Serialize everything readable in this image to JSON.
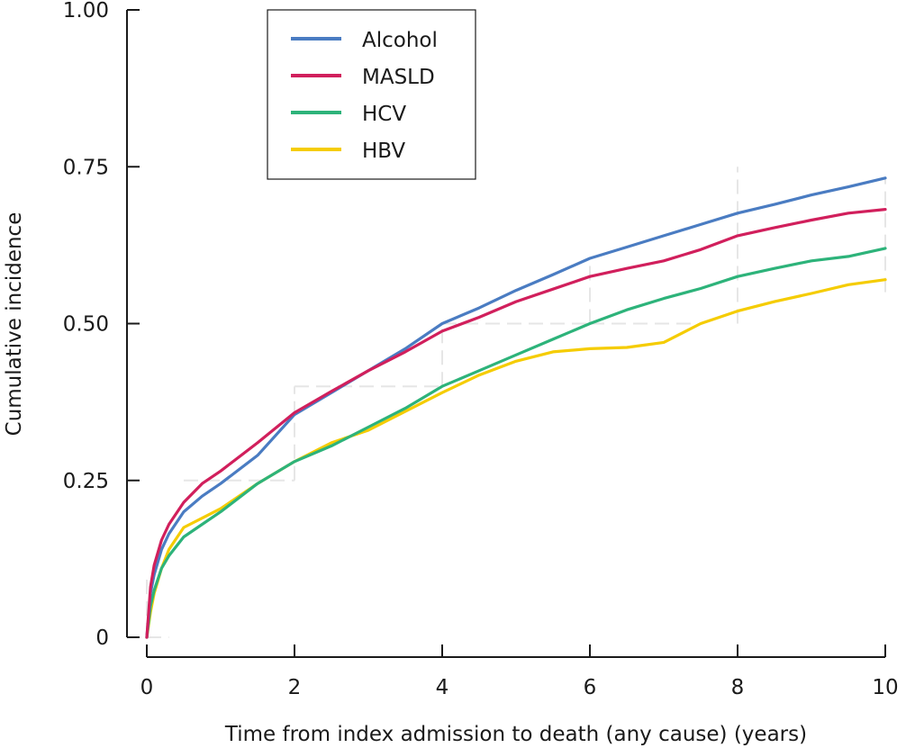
{
  "chart_data": {
    "type": "line",
    "title": "",
    "xlabel": "Time from index admission to death (any cause) (years)",
    "ylabel": "Cumulative incidence",
    "xlim": [
      0,
      10
    ],
    "ylim": [
      0,
      1
    ],
    "xticks": [
      0,
      2,
      4,
      6,
      8,
      10
    ],
    "xtick_labels": [
      "0",
      "2",
      "4",
      "6",
      "8",
      "10"
    ],
    "yticks": [
      0,
      0.25,
      0.5,
      0.75,
      1.0
    ],
    "ytick_labels": [
      "0",
      "0.25",
      "0.50",
      "0.75",
      "1.00"
    ],
    "grid": false,
    "legend": {
      "placement": "top-left",
      "boxed": true
    },
    "series": [
      {
        "name": "Alcohol",
        "color": "#4a7cc2",
        "x": [
          0,
          0.05,
          0.1,
          0.2,
          0.3,
          0.5,
          0.75,
          1,
          1.5,
          2,
          2.5,
          3,
          3.5,
          4,
          4.5,
          5,
          5.5,
          6,
          6.5,
          7,
          7.5,
          8,
          8.5,
          9,
          9.5,
          10
        ],
        "y": [
          0,
          0.07,
          0.1,
          0.14,
          0.165,
          0.2,
          0.225,
          0.245,
          0.29,
          0.355,
          0.39,
          0.425,
          0.46,
          0.5,
          0.525,
          0.553,
          0.578,
          0.604,
          0.622,
          0.64,
          0.658,
          0.676,
          0.69,
          0.705,
          0.718,
          0.732
        ]
      },
      {
        "name": "MASLD",
        "color": "#d11f5c",
        "x": [
          0,
          0.05,
          0.1,
          0.2,
          0.3,
          0.5,
          0.75,
          1,
          1.5,
          2,
          2.5,
          3,
          3.5,
          4,
          4.5,
          5,
          5.5,
          6,
          6.5,
          7,
          7.5,
          8,
          8.5,
          9,
          9.5,
          10
        ],
        "y": [
          0,
          0.08,
          0.115,
          0.155,
          0.18,
          0.215,
          0.245,
          0.265,
          0.31,
          0.358,
          0.392,
          0.425,
          0.455,
          0.488,
          0.51,
          0.535,
          0.555,
          0.575,
          0.588,
          0.6,
          0.618,
          0.64,
          0.653,
          0.665,
          0.676,
          0.682
        ]
      },
      {
        "name": "HCV",
        "color": "#2db37a",
        "x": [
          0,
          0.05,
          0.1,
          0.2,
          0.3,
          0.5,
          0.75,
          1,
          1.5,
          2,
          2.5,
          3,
          3.5,
          4,
          4.5,
          5,
          5.5,
          6,
          6.5,
          7,
          7.5,
          8,
          8.5,
          9,
          9.5,
          10
        ],
        "y": [
          0,
          0.05,
          0.075,
          0.11,
          0.13,
          0.16,
          0.18,
          0.2,
          0.245,
          0.28,
          0.305,
          0.335,
          0.365,
          0.4,
          0.425,
          0.45,
          0.475,
          0.5,
          0.522,
          0.54,
          0.556,
          0.575,
          0.588,
          0.6,
          0.607,
          0.62
        ]
      },
      {
        "name": "HBV",
        "color": "#f5cc00",
        "x": [
          0,
          0.05,
          0.1,
          0.2,
          0.3,
          0.5,
          0.75,
          1,
          1.5,
          2,
          2.5,
          3,
          3.5,
          4,
          4.5,
          5,
          5.5,
          6,
          6.5,
          7,
          7.5,
          8,
          8.5,
          9,
          9.5,
          10
        ],
        "y": [
          0,
          0.04,
          0.07,
          0.11,
          0.14,
          0.175,
          0.19,
          0.205,
          0.245,
          0.28,
          0.31,
          0.33,
          0.36,
          0.39,
          0.418,
          0.44,
          0.455,
          0.46,
          0.462,
          0.47,
          0.5,
          0.52,
          0.535,
          0.548,
          0.562,
          0.57
        ]
      }
    ]
  }
}
